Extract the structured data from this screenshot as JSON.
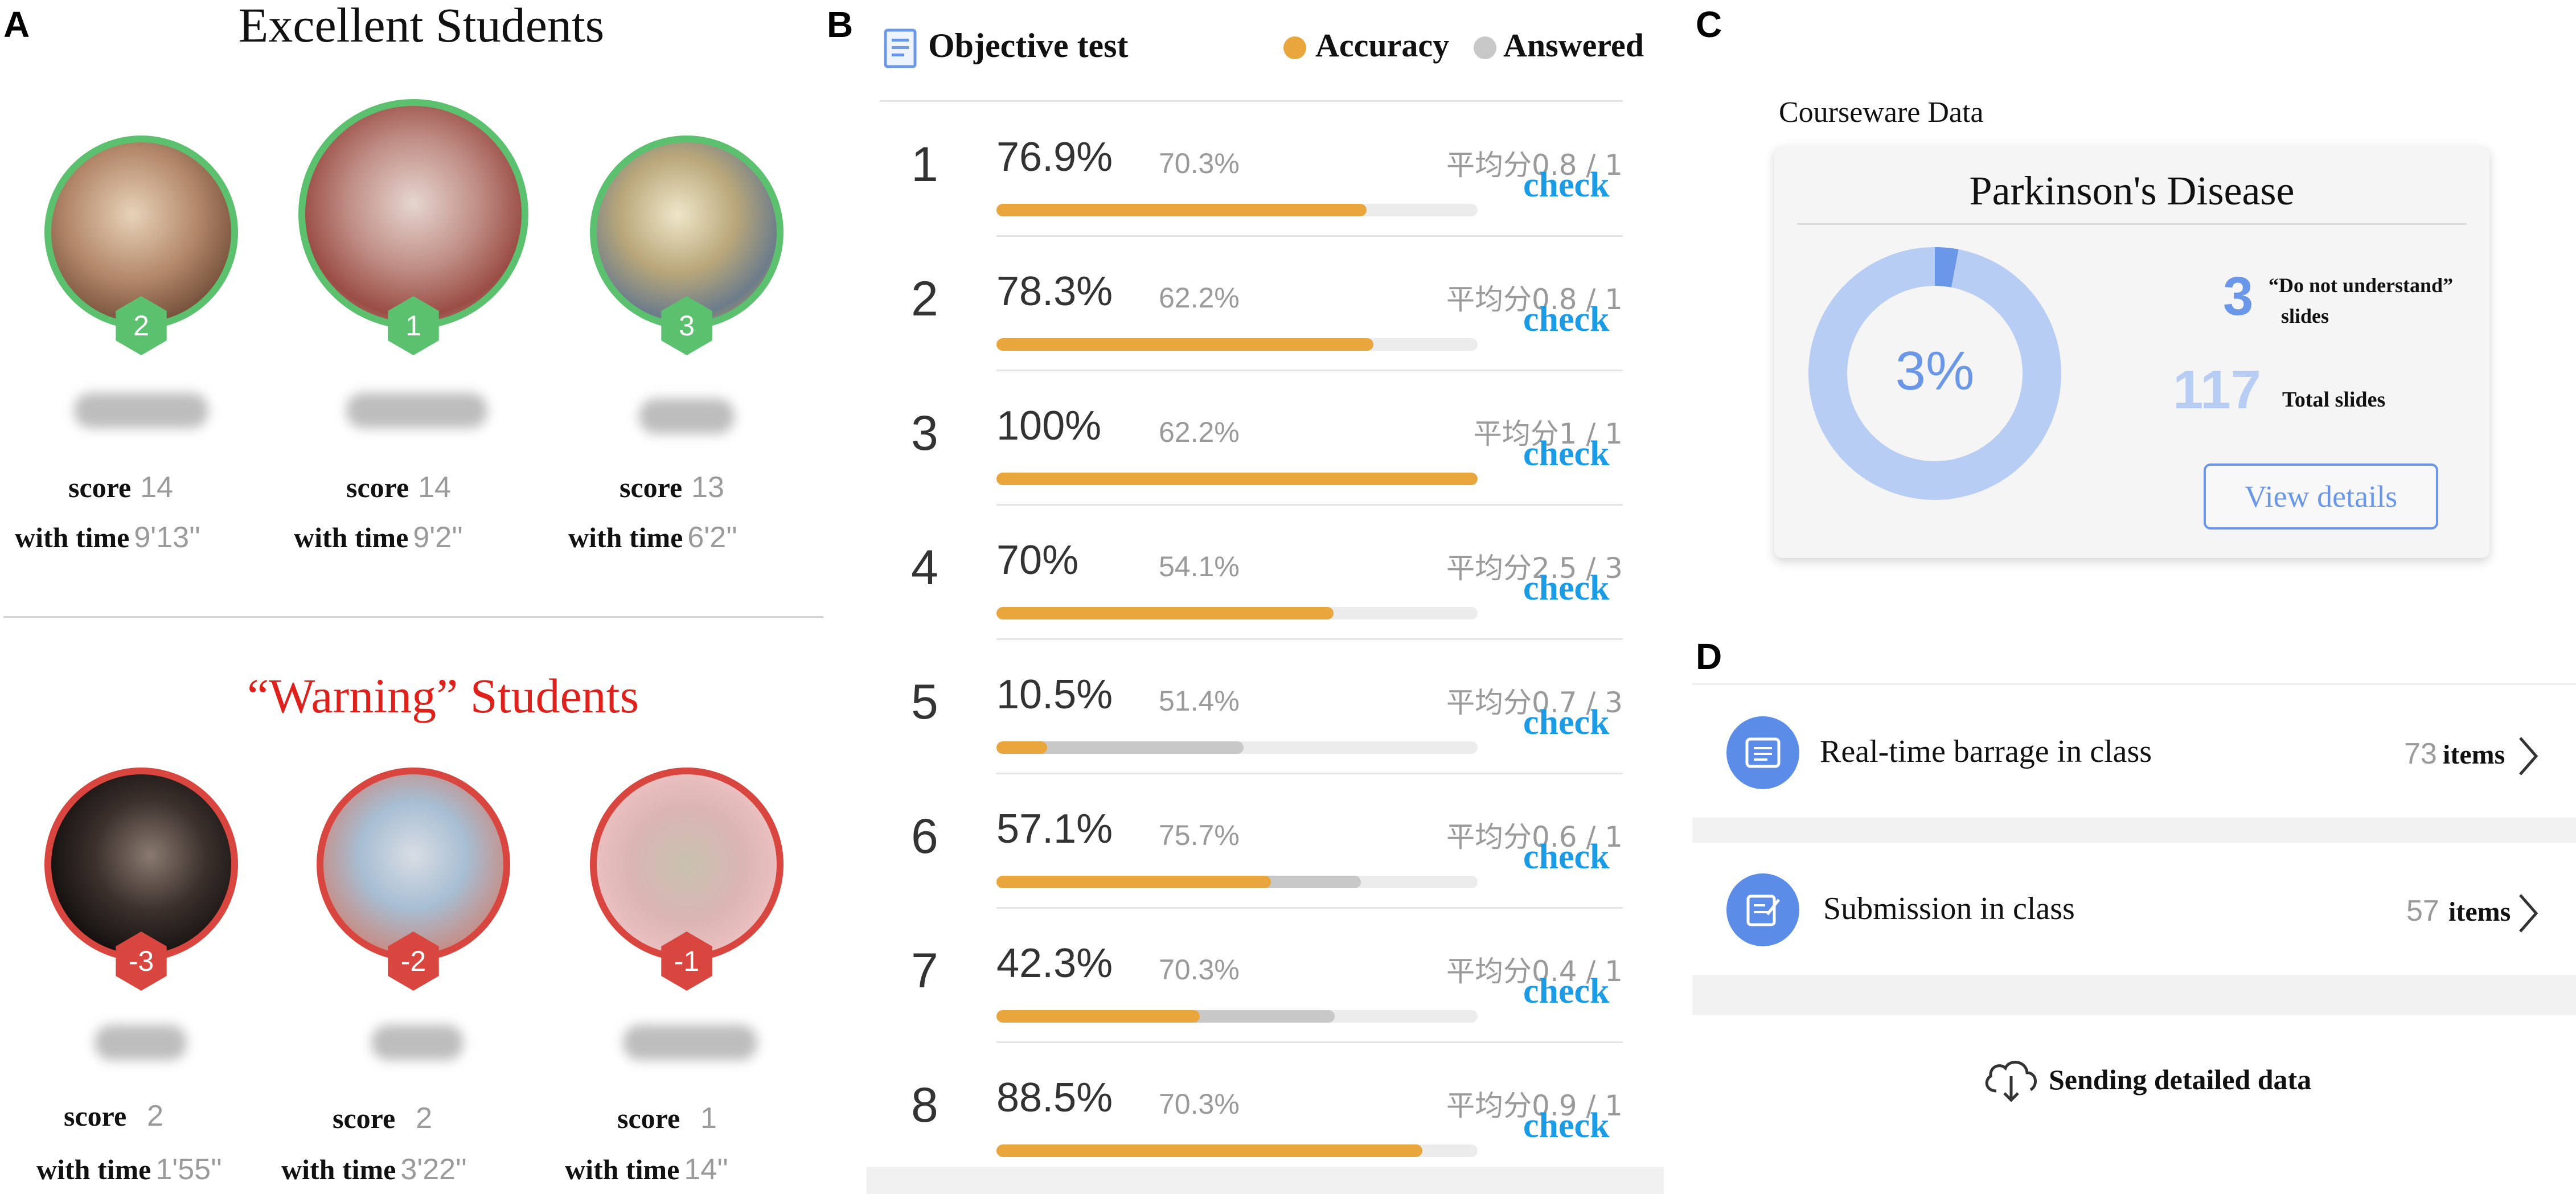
{
  "panels": {
    "a": "A",
    "b": "B",
    "c": "C",
    "d": "D"
  },
  "excellent": {
    "title": "Excellent Students",
    "students": [
      {
        "rank": "1",
        "score_label": "score",
        "score": "14",
        "time_label": "with time",
        "time": "9'2''"
      },
      {
        "rank": "2",
        "score_label": "score",
        "score": "14",
        "time_label": "with time",
        "time": "9'13''"
      },
      {
        "rank": "3",
        "score_label": "score",
        "score": "13",
        "time_label": "with time",
        "time": "6'2''"
      }
    ]
  },
  "warning": {
    "title": "“Warning” Students",
    "students": [
      {
        "rank": "-3",
        "score_label": "score",
        "score": "2",
        "time_label": "with time",
        "time": "1'55''"
      },
      {
        "rank": "-2",
        "score_label": "score",
        "score": "2",
        "time_label": "with time",
        "time": "3'22''"
      },
      {
        "rank": "-1",
        "score_label": "score",
        "score": "1",
        "time_label": "with time",
        "time": "14''"
      }
    ]
  },
  "test": {
    "title": "Objective test",
    "legend": {
      "accuracy": "Accuracy",
      "answered": "Answered"
    },
    "colors": {
      "accuracy": "#e9a63c",
      "answered": "#c8c8c8",
      "check": "#1a9be6"
    },
    "check_label": "check",
    "questions": [
      {
        "num": "1",
        "accuracy": "76.9%",
        "answered": "70.3%",
        "avg": "平均分0.8 / 1",
        "acc_frac": 0.769,
        "ans_frac": 0.703
      },
      {
        "num": "2",
        "accuracy": "78.3%",
        "answered": "62.2%",
        "avg": "平均分0.8 / 1",
        "acc_frac": 0.783,
        "ans_frac": 0.622
      },
      {
        "num": "3",
        "accuracy": "100%",
        "answered": "62.2%",
        "avg": "平均分1 / 1",
        "acc_frac": 1.0,
        "ans_frac": 0.622
      },
      {
        "num": "4",
        "accuracy": "70%",
        "answered": "54.1%",
        "avg": "平均分2.5 / 3",
        "acc_frac": 0.7,
        "ans_frac": 0.541
      },
      {
        "num": "5",
        "accuracy": "10.5%",
        "answered": "51.4%",
        "avg": "平均分0.7 / 3",
        "acc_frac": 0.105,
        "ans_frac": 0.514
      },
      {
        "num": "6",
        "accuracy": "57.1%",
        "answered": "75.7%",
        "avg": "平均分0.6 / 1",
        "acc_frac": 0.571,
        "ans_frac": 0.757
      },
      {
        "num": "7",
        "accuracy": "42.3%",
        "answered": "70.3%",
        "avg": "平均分0.4 / 1",
        "acc_frac": 0.423,
        "ans_frac": 0.703
      },
      {
        "num": "8",
        "accuracy": "88.5%",
        "answered": "70.3%",
        "avg": "平均分0.9 / 1",
        "acc_frac": 0.885,
        "ans_frac": 0.703
      }
    ]
  },
  "courseware": {
    "heading": "Courseware Data",
    "title": "Parkinson's Disease",
    "percent": "3%",
    "percent_frac": 0.03,
    "not_understand_count": "3",
    "not_understand_label_1": "“Do not understand”",
    "not_understand_label_2": "slides",
    "total_count": "117",
    "total_label": "Total slides",
    "view_details": "View details",
    "colors": {
      "ring": "#b7cdf3",
      "ring_highlight": "#6a97e8",
      "number": "#6a97e8",
      "number_light": "#b7cdf3"
    }
  },
  "class_data": {
    "items": [
      {
        "label": "Real-time barrage in class",
        "count": "73",
        "unit": "items",
        "icon": "barrage-icon"
      },
      {
        "label": "Submission in class",
        "count": "57",
        "unit": "items",
        "icon": "submission-icon"
      }
    ],
    "send_label": "Sending detailed data",
    "send_icon": "cloud-download-icon",
    "icon_color": "#5b8de8"
  }
}
